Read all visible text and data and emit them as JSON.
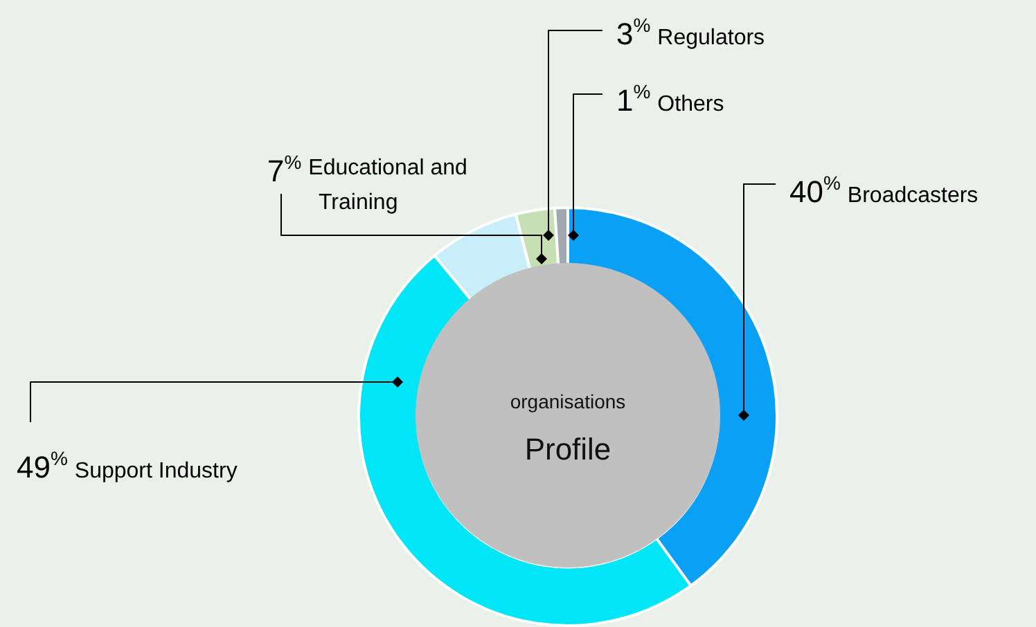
{
  "chart_data": {
    "type": "donut",
    "title": "Profile",
    "subtitle": "organisations",
    "categories": [
      "Broadcasters",
      "Support Industry",
      "Educational and Training",
      "Regulators",
      "Others"
    ],
    "values": [
      40,
      49,
      7,
      3,
      1
    ],
    "colors": [
      "#0aa0f5",
      "#00e6f7",
      "#c8eefa",
      "#c6e0b4",
      "#a0a8b0"
    ],
    "value_labels": [
      "40$^{%}$",
      "49$^{%}$",
      "7$^{%}$",
      "3$^{%}$",
      "1$^{%}$"
    ],
    "legend": false
  }
}
